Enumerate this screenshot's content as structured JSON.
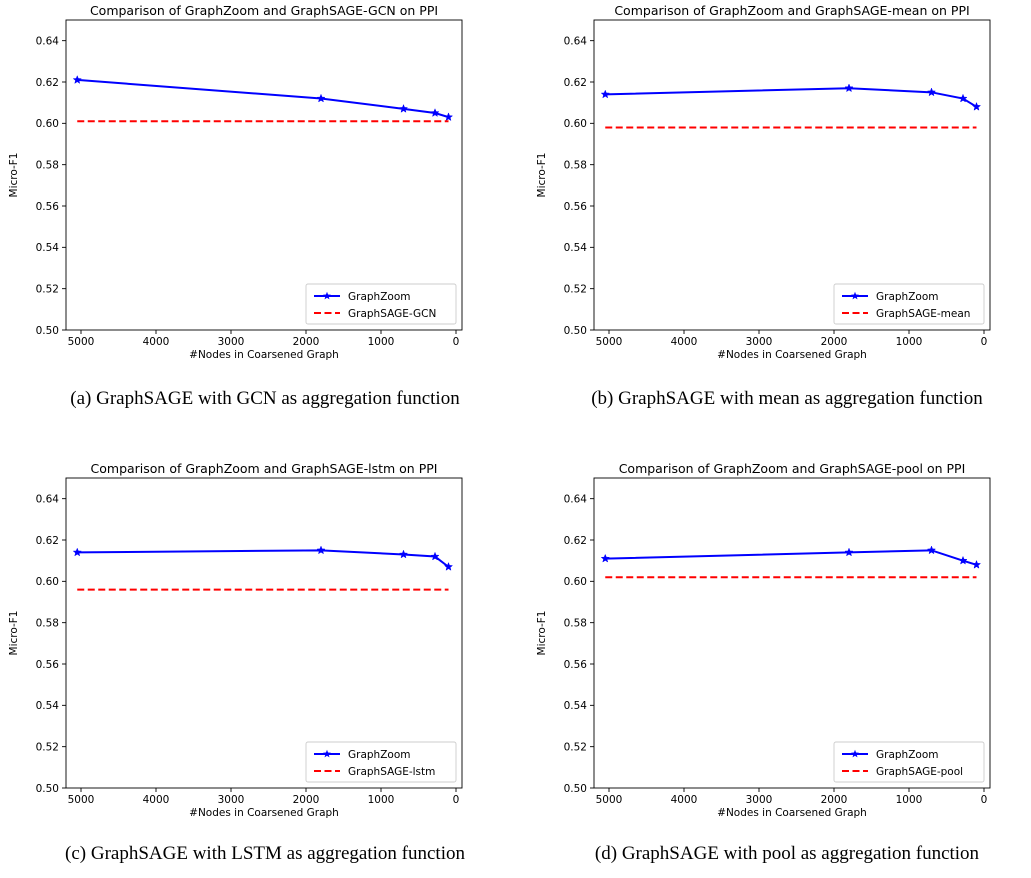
{
  "chart_data": [
    {
      "type": "line",
      "title": "Comparison of GraphZoom and GraphSAGE-GCN on PPI",
      "xlabel": "#Nodes in Coarsened Graph",
      "ylabel": "Micro-F1",
      "xlim": [
        5200,
        -80
      ],
      "ylim": [
        0.5,
        0.65
      ],
      "x_inverted": true,
      "xticks": [
        5000,
        4000,
        3000,
        2000,
        1000,
        0
      ],
      "yticks": [
        0.5,
        0.52,
        0.54,
        0.56,
        0.58,
        0.6,
        0.62,
        0.64
      ],
      "legend_position": "lower-right",
      "series": [
        {
          "name": "GraphZoom",
          "color": "#0000ff",
          "style": "solid-star",
          "x": [
            5050,
            1800,
            700,
            280,
            100
          ],
          "y": [
            0.621,
            0.612,
            0.607,
            0.605,
            0.603
          ]
        },
        {
          "name": "GraphSAGE-GCN",
          "color": "#ff0000",
          "style": "dashed",
          "x": [
            5050,
            100
          ],
          "y": [
            0.601,
            0.601
          ]
        }
      ],
      "caption": "(a) GraphSAGE with GCN as aggregation function"
    },
    {
      "type": "line",
      "title": "Comparison of GraphZoom and GraphSAGE-mean on PPI",
      "xlabel": "#Nodes in Coarsened Graph",
      "ylabel": "Micro-F1",
      "xlim": [
        5200,
        -80
      ],
      "ylim": [
        0.5,
        0.65
      ],
      "x_inverted": true,
      "xticks": [
        5000,
        4000,
        3000,
        2000,
        1000,
        0
      ],
      "yticks": [
        0.5,
        0.52,
        0.54,
        0.56,
        0.58,
        0.6,
        0.62,
        0.64
      ],
      "legend_position": "lower-right",
      "series": [
        {
          "name": "GraphZoom",
          "color": "#0000ff",
          "style": "solid-star",
          "x": [
            5050,
            1800,
            700,
            280,
            100
          ],
          "y": [
            0.614,
            0.617,
            0.615,
            0.612,
            0.608
          ]
        },
        {
          "name": "GraphSAGE-mean",
          "color": "#ff0000",
          "style": "dashed",
          "x": [
            5050,
            100
          ],
          "y": [
            0.598,
            0.598
          ]
        }
      ],
      "caption": "(b) GraphSAGE with mean as aggregation function"
    },
    {
      "type": "line",
      "title": "Comparison of GraphZoom and GraphSAGE-lstm on PPI",
      "xlabel": "#Nodes in Coarsened Graph",
      "ylabel": "Micro-F1",
      "xlim": [
        5200,
        -80
      ],
      "ylim": [
        0.5,
        0.65
      ],
      "x_inverted": true,
      "xticks": [
        5000,
        4000,
        3000,
        2000,
        1000,
        0
      ],
      "yticks": [
        0.5,
        0.52,
        0.54,
        0.56,
        0.58,
        0.6,
        0.62,
        0.64
      ],
      "legend_position": "lower-right",
      "series": [
        {
          "name": "GraphZoom",
          "color": "#0000ff",
          "style": "solid-star",
          "x": [
            5050,
            1800,
            700,
            280,
            100
          ],
          "y": [
            0.614,
            0.615,
            0.613,
            0.612,
            0.607
          ]
        },
        {
          "name": "GraphSAGE-lstm",
          "color": "#ff0000",
          "style": "dashed",
          "x": [
            5050,
            100
          ],
          "y": [
            0.596,
            0.596
          ]
        }
      ],
      "caption": "(c) GraphSAGE with LSTM as aggregation function"
    },
    {
      "type": "line",
      "title": "Comparison of GraphZoom and GraphSAGE-pool on PPI",
      "xlabel": "#Nodes in Coarsened Graph",
      "ylabel": "Micro-F1",
      "xlim": [
        5200,
        -80
      ],
      "ylim": [
        0.5,
        0.65
      ],
      "x_inverted": true,
      "xticks": [
        5000,
        4000,
        3000,
        2000,
        1000,
        0
      ],
      "yticks": [
        0.5,
        0.52,
        0.54,
        0.56,
        0.58,
        0.6,
        0.62,
        0.64
      ],
      "legend_position": "lower-right",
      "series": [
        {
          "name": "GraphZoom",
          "color": "#0000ff",
          "style": "solid-star",
          "x": [
            5050,
            1800,
            700,
            280,
            100
          ],
          "y": [
            0.611,
            0.614,
            0.615,
            0.61,
            0.608
          ]
        },
        {
          "name": "GraphSAGE-pool",
          "color": "#ff0000",
          "style": "dashed",
          "x": [
            5050,
            100
          ],
          "y": [
            0.602,
            0.602
          ]
        }
      ],
      "caption": "(d) GraphSAGE with pool as aggregation function"
    }
  ]
}
